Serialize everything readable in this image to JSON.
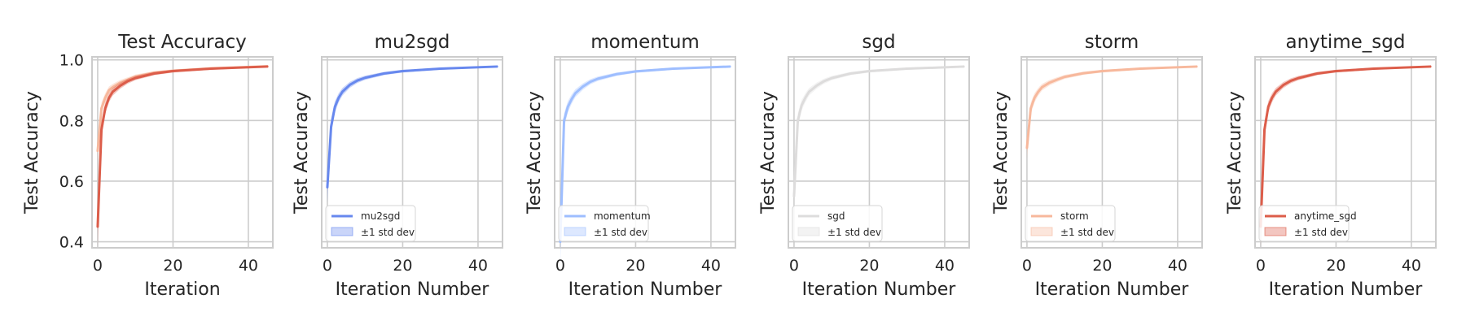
{
  "chart_data": [
    {
      "type": "line",
      "title": "Test Accuracy",
      "xlabel": "Iteration",
      "ylabel": "Test Accuracy",
      "xlim": [
        -1.5,
        46.5
      ],
      "ylim": [
        0.38,
        1.01
      ],
      "xticks": [
        0,
        20,
        40
      ],
      "yticks": [
        0.4,
        0.6,
        0.8,
        1.0
      ],
      "ytick_labels": [
        "0.4",
        "0.6",
        "0.8",
        "1.0"
      ],
      "grid": true,
      "legend": null,
      "series": [
        {
          "color": "#f7b89c",
          "x": [
            0,
            1,
            2,
            3,
            4,
            6,
            8,
            10,
            15,
            20,
            30,
            45
          ],
          "y": [
            0.7,
            0.84,
            0.875,
            0.9,
            0.91,
            0.925,
            0.935,
            0.945,
            0.958,
            0.964,
            0.972,
            0.979
          ]
        },
        {
          "color": "#dc5d4a",
          "x": [
            0,
            1,
            2,
            3,
            4,
            6,
            8,
            10,
            15,
            20,
            30,
            45
          ],
          "y": [
            0.45,
            0.77,
            0.84,
            0.875,
            0.895,
            0.915,
            0.93,
            0.94,
            0.955,
            0.963,
            0.971,
            0.978
          ]
        }
      ]
    },
    {
      "type": "line",
      "title": "mu2sgd",
      "xlabel": "Iteration Number",
      "ylabel": "Test Accuracy",
      "xlim": [
        -1.5,
        46.5
      ],
      "ylim": [
        0.38,
        1.01
      ],
      "xticks": [
        0,
        20,
        40
      ],
      "grid": true,
      "legend": "lower-left",
      "series": [
        {
          "name": "mu2sgd",
          "band_label": "±1 std dev",
          "color": "#6788ee",
          "x": [
            0,
            1,
            2,
            3,
            4,
            6,
            8,
            10,
            15,
            20,
            30,
            45
          ],
          "y": [
            0.58,
            0.78,
            0.845,
            0.875,
            0.895,
            0.918,
            0.932,
            0.941,
            0.955,
            0.963,
            0.971,
            0.978
          ]
        }
      ]
    },
    {
      "type": "line",
      "title": "momentum",
      "xlabel": "Iteration Number",
      "ylabel": "Test Accuracy",
      "xlim": [
        -1.5,
        46.5
      ],
      "ylim": [
        0.38,
        1.01
      ],
      "xticks": [
        0,
        20,
        40
      ],
      "grid": true,
      "legend": "lower-left",
      "series": [
        {
          "name": "momentum",
          "band_label": "±1 std dev",
          "color": "#9ebeff",
          "x": [
            0,
            1,
            2,
            3,
            4,
            6,
            8,
            10,
            15,
            20,
            30,
            45
          ],
          "y": [
            0.4,
            0.8,
            0.845,
            0.87,
            0.89,
            0.912,
            0.928,
            0.938,
            0.953,
            0.962,
            0.971,
            0.978
          ]
        }
      ]
    },
    {
      "type": "line",
      "title": "sgd",
      "xlabel": "Iteration Number",
      "ylabel": "Test Accuracy",
      "xlim": [
        -1.5,
        46.5
      ],
      "ylim": [
        0.38,
        1.01
      ],
      "xticks": [
        0,
        20,
        40
      ],
      "grid": true,
      "legend": "lower-left",
      "series": [
        {
          "name": "sgd",
          "band_label": "±1 std dev",
          "color": "#dddcdc",
          "x": [
            0,
            1,
            2,
            3,
            4,
            6,
            8,
            10,
            15,
            20,
            30,
            45
          ],
          "y": [
            0.55,
            0.8,
            0.85,
            0.875,
            0.895,
            0.915,
            0.93,
            0.94,
            0.955,
            0.963,
            0.971,
            0.978
          ]
        }
      ]
    },
    {
      "type": "line",
      "title": "storm",
      "xlabel": "Iteration Number",
      "ylabel": "Test Accuracy",
      "xlim": [
        -1.5,
        46.5
      ],
      "ylim": [
        0.38,
        1.01
      ],
      "xticks": [
        0,
        20,
        40
      ],
      "grid": true,
      "legend": "lower-left",
      "series": [
        {
          "name": "storm",
          "band_label": "±1 std dev",
          "color": "#f7b89c",
          "x": [
            0,
            1,
            2,
            3,
            4,
            6,
            8,
            10,
            15,
            20,
            30,
            45
          ],
          "y": [
            0.71,
            0.84,
            0.875,
            0.895,
            0.91,
            0.925,
            0.935,
            0.944,
            0.956,
            0.963,
            0.971,
            0.978
          ]
        }
      ]
    },
    {
      "type": "line",
      "title": "anytime_sgd",
      "xlabel": "Iteration Number",
      "ylabel": "Test Accuracy",
      "xlim": [
        -1.5,
        46.5
      ],
      "ylim": [
        0.38,
        1.01
      ],
      "xticks": [
        0,
        20,
        40
      ],
      "grid": true,
      "legend": "lower-left",
      "series": [
        {
          "name": "anytime_sgd",
          "band_label": "±1 std dev",
          "color": "#dc5d4a",
          "x": [
            0,
            1,
            2,
            3,
            4,
            6,
            8,
            10,
            15,
            20,
            30,
            45
          ],
          "y": [
            0.45,
            0.77,
            0.845,
            0.875,
            0.895,
            0.917,
            0.931,
            0.94,
            0.955,
            0.963,
            0.971,
            0.978
          ]
        }
      ]
    }
  ]
}
